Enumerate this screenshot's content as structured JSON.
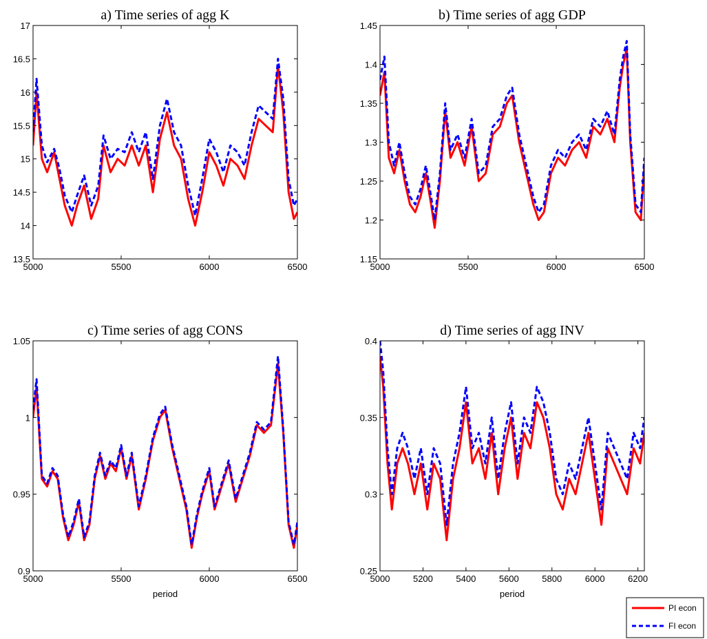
{
  "chart_data": [
    {
      "type": "line",
      "title": "a) Time series of agg K",
      "xlabel": "",
      "ylabel": "",
      "xlim": [
        5000,
        6500
      ],
      "ylim": [
        13.5,
        17
      ],
      "xticks": [
        "5000",
        "5500",
        "6000",
        "6500"
      ],
      "yticks": [
        "13.5",
        "14",
        "14.5",
        "15",
        "15.5",
        "16",
        "16.5",
        "17"
      ],
      "x": [
        5000,
        5020,
        5050,
        5080,
        5120,
        5150,
        5180,
        5220,
        5250,
        5290,
        5330,
        5370,
        5400,
        5440,
        5480,
        5520,
        5560,
        5600,
        5640,
        5680,
        5720,
        5760,
        5800,
        5840,
        5880,
        5920,
        5960,
        6000,
        6040,
        6080,
        6120,
        6160,
        6200,
        6240,
        6280,
        6320,
        6360,
        6390,
        6420,
        6450,
        6480,
        6500
      ],
      "series": [
        {
          "name": "PI econ",
          "values": [
            15.2,
            16.0,
            15.0,
            14.8,
            15.1,
            14.7,
            14.3,
            14.0,
            14.3,
            14.6,
            14.1,
            14.4,
            15.2,
            14.8,
            15.0,
            14.9,
            15.2,
            14.9,
            15.2,
            14.5,
            15.3,
            15.7,
            15.2,
            15.0,
            14.4,
            14.0,
            14.5,
            15.1,
            14.9,
            14.6,
            15.0,
            14.9,
            14.7,
            15.2,
            15.6,
            15.5,
            15.4,
            16.4,
            15.7,
            14.5,
            14.1,
            14.2
          ]
        },
        {
          "name": "FI econ",
          "values": [
            15.4,
            16.2,
            15.2,
            14.95,
            15.15,
            14.85,
            14.45,
            14.2,
            14.45,
            14.75,
            14.3,
            14.6,
            15.35,
            15.0,
            15.15,
            15.1,
            15.4,
            15.1,
            15.4,
            14.7,
            15.5,
            15.9,
            15.4,
            15.2,
            14.6,
            14.15,
            14.7,
            15.3,
            15.1,
            14.8,
            15.2,
            15.1,
            14.9,
            15.4,
            15.8,
            15.7,
            15.6,
            16.5,
            15.9,
            14.7,
            14.3,
            14.4
          ]
        }
      ]
    },
    {
      "type": "line",
      "title": "b) Time series of agg GDP",
      "xlabel": "",
      "ylabel": "",
      "xlim": [
        5000,
        6500
      ],
      "ylim": [
        1.15,
        1.45
      ],
      "xticks": [
        "5000",
        "5500",
        "6000",
        "6500"
      ],
      "yticks": [
        "1.15",
        "1.2",
        "1.25",
        "1.3",
        "1.35",
        "1.4",
        "1.45"
      ],
      "x": [
        5000,
        5025,
        5050,
        5080,
        5110,
        5140,
        5170,
        5200,
        5230,
        5260,
        5290,
        5310,
        5340,
        5370,
        5400,
        5440,
        5480,
        5520,
        5560,
        5600,
        5640,
        5680,
        5720,
        5750,
        5790,
        5830,
        5870,
        5900,
        5930,
        5970,
        6010,
        6050,
        6090,
        6130,
        6170,
        6210,
        6250,
        6290,
        6330,
        6360,
        6380,
        6400,
        6420,
        6450,
        6480,
        6500
      ],
      "series": [
        {
          "name": "PI econ",
          "values": [
            1.36,
            1.39,
            1.28,
            1.26,
            1.29,
            1.25,
            1.22,
            1.21,
            1.23,
            1.26,
            1.22,
            1.19,
            1.25,
            1.34,
            1.28,
            1.3,
            1.27,
            1.32,
            1.25,
            1.26,
            1.31,
            1.32,
            1.35,
            1.36,
            1.3,
            1.26,
            1.22,
            1.2,
            1.21,
            1.26,
            1.28,
            1.27,
            1.29,
            1.3,
            1.28,
            1.32,
            1.31,
            1.33,
            1.3,
            1.37,
            1.4,
            1.42,
            1.3,
            1.21,
            1.2,
            1.27
          ]
        },
        {
          "name": "FI econ",
          "values": [
            1.38,
            1.41,
            1.3,
            1.27,
            1.3,
            1.26,
            1.23,
            1.22,
            1.24,
            1.27,
            1.23,
            1.2,
            1.26,
            1.35,
            1.29,
            1.31,
            1.28,
            1.33,
            1.26,
            1.27,
            1.32,
            1.33,
            1.36,
            1.37,
            1.31,
            1.27,
            1.23,
            1.21,
            1.22,
            1.27,
            1.29,
            1.28,
            1.3,
            1.31,
            1.29,
            1.33,
            1.32,
            1.34,
            1.31,
            1.38,
            1.41,
            1.43,
            1.31,
            1.22,
            1.21,
            1.28
          ]
        }
      ]
    },
    {
      "type": "line",
      "title": "c) Time series of agg CONS",
      "xlabel": "period",
      "ylabel": "",
      "xlim": [
        5000,
        6500
      ],
      "ylim": [
        0.9,
        1.05
      ],
      "xticks": [
        "5000",
        "5500",
        "6000",
        "6500"
      ],
      "yticks": [
        "0.9",
        "0.95",
        "1",
        "1.05"
      ],
      "x": [
        5000,
        5020,
        5050,
        5080,
        5110,
        5140,
        5170,
        5200,
        5230,
        5260,
        5290,
        5320,
        5350,
        5380,
        5410,
        5440,
        5470,
        5500,
        5530,
        5560,
        5600,
        5640,
        5680,
        5720,
        5750,
        5790,
        5830,
        5870,
        5900,
        5930,
        5960,
        6000,
        6030,
        6070,
        6110,
        6150,
        6190,
        6230,
        6270,
        6310,
        6350,
        6390,
        6420,
        6450,
        6480,
        6500
      ],
      "series": [
        {
          "name": "PI econ",
          "values": [
            1.0,
            1.02,
            0.96,
            0.955,
            0.965,
            0.96,
            0.935,
            0.92,
            0.93,
            0.945,
            0.92,
            0.93,
            0.96,
            0.975,
            0.96,
            0.97,
            0.965,
            0.98,
            0.96,
            0.975,
            0.94,
            0.96,
            0.985,
            1.0,
            1.005,
            0.98,
            0.96,
            0.94,
            0.915,
            0.935,
            0.95,
            0.965,
            0.94,
            0.955,
            0.97,
            0.945,
            0.96,
            0.975,
            0.995,
            0.99,
            0.995,
            1.035,
            0.99,
            0.93,
            0.915,
            0.93
          ]
        },
        {
          "name": "FI econ",
          "values": [
            1.005,
            1.025,
            0.962,
            0.957,
            0.967,
            0.962,
            0.937,
            0.922,
            0.932,
            0.947,
            0.922,
            0.932,
            0.962,
            0.977,
            0.962,
            0.972,
            0.967,
            0.982,
            0.962,
            0.977,
            0.942,
            0.962,
            0.987,
            1.002,
            1.007,
            0.982,
            0.962,
            0.942,
            0.917,
            0.937,
            0.952,
            0.967,
            0.942,
            0.957,
            0.972,
            0.947,
            0.962,
            0.977,
            0.997,
            0.992,
            0.997,
            1.04,
            0.992,
            0.932,
            0.917,
            0.932
          ]
        }
      ]
    },
    {
      "type": "line",
      "title": "d) Time series of agg INV",
      "xlabel": "period",
      "ylabel": "",
      "xlim": [
        5000,
        6230
      ],
      "ylim": [
        0.25,
        0.4
      ],
      "xticks": [
        "5000",
        "5200",
        "5400",
        "5600",
        "5800",
        "6000",
        "6200"
      ],
      "yticks": [
        "0.25",
        "0.3",
        "0.35",
        "0.4"
      ],
      "x": [
        5000,
        5015,
        5035,
        5055,
        5080,
        5105,
        5130,
        5160,
        5190,
        5220,
        5250,
        5280,
        5310,
        5340,
        5370,
        5400,
        5430,
        5460,
        5490,
        5520,
        5550,
        5580,
        5610,
        5640,
        5670,
        5700,
        5730,
        5760,
        5790,
        5820,
        5850,
        5880,
        5910,
        5940,
        5970,
        6000,
        6030,
        6060,
        6090,
        6120,
        6150,
        6180,
        6210,
        6230
      ],
      "series": [
        {
          "name": "PI econ",
          "values": [
            0.39,
            0.37,
            0.32,
            0.29,
            0.32,
            0.33,
            0.32,
            0.3,
            0.32,
            0.29,
            0.32,
            0.31,
            0.27,
            0.31,
            0.33,
            0.36,
            0.32,
            0.33,
            0.31,
            0.34,
            0.3,
            0.33,
            0.35,
            0.31,
            0.34,
            0.33,
            0.36,
            0.35,
            0.33,
            0.3,
            0.29,
            0.31,
            0.3,
            0.32,
            0.34,
            0.31,
            0.28,
            0.33,
            0.32,
            0.31,
            0.3,
            0.33,
            0.32,
            0.34
          ]
        },
        {
          "name": "FI econ",
          "values": [
            0.4,
            0.38,
            0.33,
            0.3,
            0.33,
            0.34,
            0.33,
            0.31,
            0.33,
            0.3,
            0.33,
            0.32,
            0.28,
            0.32,
            0.34,
            0.37,
            0.33,
            0.34,
            0.32,
            0.35,
            0.31,
            0.34,
            0.36,
            0.32,
            0.35,
            0.34,
            0.37,
            0.36,
            0.34,
            0.31,
            0.3,
            0.32,
            0.31,
            0.33,
            0.35,
            0.32,
            0.29,
            0.34,
            0.33,
            0.32,
            0.31,
            0.34,
            0.33,
            0.35
          ]
        }
      ]
    }
  ],
  "legend": {
    "items": [
      {
        "label": "PI econ",
        "color": "#ff0000",
        "style": "solid"
      },
      {
        "label": "FI econ",
        "color": "#0000ff",
        "style": "dashed"
      }
    ],
    "placement": "bottom-right"
  },
  "colors": {
    "pi": "#ff0000",
    "fi": "#0000ff"
  }
}
